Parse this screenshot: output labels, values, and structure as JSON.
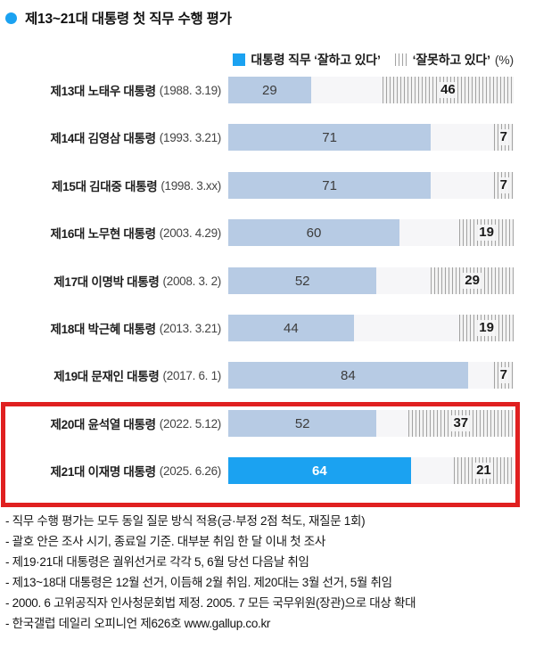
{
  "header": {
    "title": "제13~21대 대통령 첫 직무 수행 평가"
  },
  "legend": {
    "approve_label": "대통령 직무 ‘잘하고 있다’",
    "disapprove_label": "‘잘못하고 있다’",
    "unit_label": "(%)"
  },
  "chart_data": {
    "type": "bar",
    "orientation": "horizontal",
    "title": "제13~21대 대통령 첫 직무 수행 평가",
    "unit": "%",
    "xlim": [
      0,
      100
    ],
    "legend_position": "top-right",
    "categories": [
      "제13대 노태우 대통령 (1988. 3.19)",
      "제14대 김영삼 대통령 (1993. 3.21)",
      "제15대 김대중 대통령 (1998. 3.xx)",
      "제16대 노무현 대통령 (2003. 4.29)",
      "제17대 이명박 대통령 (2008. 3. 2)",
      "제18대 박근혜 대통령 (2013. 3.21)",
      "제19대 문재인 대통령 (2017. 6. 1)",
      "제20대 윤석열 대통령 (2022. 5.12)",
      "제21대 이재명 대통령 (2025. 6.26)"
    ],
    "series": [
      {
        "name": "대통령 직무 ‘잘하고 있다’",
        "values": [
          29,
          71,
          71,
          60,
          52,
          44,
          84,
          52,
          64
        ]
      },
      {
        "name": "‘잘못하고 있다’",
        "values": [
          46,
          7,
          7,
          19,
          29,
          19,
          7,
          37,
          21
        ]
      }
    ],
    "rows": [
      {
        "name": "제13대 노태우 대통령",
        "date": "(1988. 3.19)",
        "approve": 29,
        "disapprove": 46,
        "accent": false,
        "boxed": false
      },
      {
        "name": "제14대 김영삼 대통령",
        "date": "(1993. 3.21)",
        "approve": 71,
        "disapprove": 7,
        "accent": false,
        "boxed": false
      },
      {
        "name": "제15대 김대중 대통령",
        "date": "(1998. 3.xx)",
        "approve": 71,
        "disapprove": 7,
        "accent": false,
        "boxed": false
      },
      {
        "name": "제16대 노무현 대통령",
        "date": "(2003. 4.29)",
        "approve": 60,
        "disapprove": 19,
        "accent": false,
        "boxed": false
      },
      {
        "name": "제17대 이명박 대통령",
        "date": "(2008. 3. 2)",
        "approve": 52,
        "disapprove": 29,
        "accent": false,
        "boxed": false
      },
      {
        "name": "제18대 박근혜 대통령",
        "date": "(2013. 3.21)",
        "approve": 44,
        "disapprove": 19,
        "accent": false,
        "boxed": false
      },
      {
        "name": "제19대 문재인 대통령",
        "date": "(2017. 6. 1)",
        "approve": 84,
        "disapprove": 7,
        "accent": false,
        "boxed": false
      },
      {
        "name": "제20대 윤석열 대통령",
        "date": "(2022. 5.12)",
        "approve": 52,
        "disapprove": 37,
        "accent": false,
        "boxed": true
      },
      {
        "name": "제21대 이재명 대통령",
        "date": "(2025. 6.26)",
        "approve": 64,
        "disapprove": 21,
        "accent": true,
        "boxed": true
      }
    ]
  },
  "footnotes": [
    "- 직무 수행 평가는 모두 동일 질문 방식 적용(긍·부정 2점 척도, 재질문 1회)",
    "- 괄호 안은 조사 시기, 종료일 기준. 대부분 취임 한 달 이내 첫 조사",
    "- 제19·21대 대통령은 궐위선거로 각각 5, 6월 당선 다음날 취임",
    "- 제13~18대 대통령은 12월 선거, 이듬해 2월 취임. 제20대는 3월 선거, 5월 취임",
    "- 2000. 6 고위공직자 인사청문회법 제정. 2005. 7 모든 국무위원(장관)으로 대상 확대",
    "- 한국갤럽 데일리 오피니언 제626호 www.gallup.co.kr"
  ],
  "colors": {
    "accent": "#1ba2f1",
    "approve_bar": "#b7cbe4",
    "track": "#f6f6f8",
    "hatch_line": "#a3a3a3",
    "highlight_box": "#e02020"
  }
}
